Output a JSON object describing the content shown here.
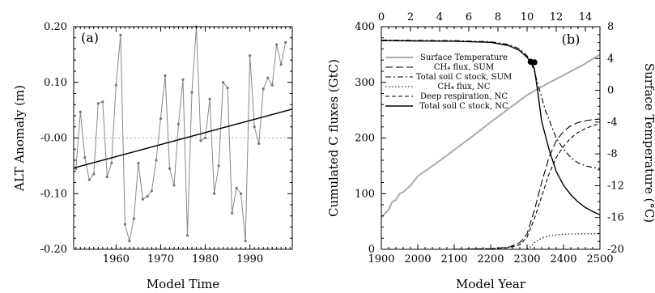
{
  "chart_data": [
    {
      "panel_label": "(a)",
      "type": "line",
      "xlabel": "Model Time",
      "ylabel": "ALT Anomaly (m)",
      "xlim": [
        1950.5,
        1999.5
      ],
      "ylim": [
        -0.2,
        0.2
      ],
      "x_ticks": [
        1960,
        1970,
        1980,
        1990
      ],
      "y_ticks": [
        0.2,
        0.1,
        0.0,
        -0.1,
        -0.2
      ],
      "y_tick_labels": [
        "0.20",
        "0.10",
        "-0.00",
        "-0.10",
        "-0.20"
      ],
      "zero_line": "dotted",
      "series": [
        {
          "style": "grey line with markers",
          "x": [
            1951,
            1952,
            1953,
            1954,
            1955,
            1956,
            1957,
            1958,
            1959,
            1960,
            1961,
            1962,
            1963,
            1964,
            1965,
            1966,
            1967,
            1968,
            1969,
            1970,
            1971,
            1972,
            1973,
            1974,
            1975,
            1976,
            1977,
            1978,
            1979,
            1980,
            1981,
            1982,
            1983,
            1984,
            1985,
            1986,
            1987,
            1988,
            1989,
            1990,
            1991,
            1992,
            1993,
            1994,
            1995,
            1996,
            1997,
            1998
          ],
          "y": [
            -0.055,
            0.047,
            -0.035,
            -0.075,
            -0.065,
            0.062,
            0.065,
            -0.07,
            -0.045,
            0.095,
            0.185,
            -0.155,
            -0.185,
            -0.145,
            -0.045,
            -0.11,
            -0.105,
            -0.095,
            -0.04,
            0.035,
            0.112,
            -0.055,
            -0.085,
            0.025,
            0.105,
            -0.175,
            0.082,
            0.2,
            -0.005,
            0.0,
            0.07,
            -0.1,
            -0.05,
            0.1,
            0.09,
            -0.135,
            -0.09,
            -0.1,
            -0.185,
            0.148,
            0.02,
            -0.01,
            0.088,
            0.108,
            0.095,
            0.168,
            0.132,
            0.172
          ]
        },
        {
          "style": "black linear trend",
          "x": [
            1950.5,
            1999.5
          ],
          "y": [
            -0.054,
            0.052
          ]
        }
      ]
    },
    {
      "panel_label": "(b)",
      "type": "line",
      "xlabel": "Model Year",
      "ylabel": "Cumulated C fluxes (GtC)",
      "y2label": "Surface Temperature (°C)",
      "xlim": [
        1900,
        2500
      ],
      "ylim": [
        0,
        400
      ],
      "y2lim": [
        -20,
        8
      ],
      "x2lim": [
        0,
        15
      ],
      "x_ticks": [
        1900,
        2000,
        2100,
        2200,
        2300,
        2400,
        2500
      ],
      "y_ticks": [
        0,
        100,
        200,
        300,
        400
      ],
      "x2_ticks": [
        0,
        2,
        4,
        6,
        8,
        10,
        12,
        14
      ],
      "y2_ticks": [
        8,
        4,
        0,
        -4,
        -8,
        -12,
        -16,
        -20
      ],
      "legend_position": "top-left",
      "legend": [
        {
          "label": "Surface Temperature",
          "style": "grey"
        },
        {
          "label": "CH₄ flux, SUM",
          "style": "long-dash"
        },
        {
          "label": "Total soil C stock, SUM",
          "style": "dash-dot"
        },
        {
          "label": "CH₄ flux, NC",
          "style": "dotted"
        },
        {
          "label": "Deep respiration, NC",
          "style": "dashed"
        },
        {
          "label": "Total soil C stock, NC",
          "style": "solid"
        }
      ],
      "series": [
        {
          "name": "Surface Temperature",
          "axis": "right",
          "x": [
            1900,
            1910,
            1920,
            1930,
            1940,
            1950,
            1960,
            1970,
            1980,
            1990,
            2000,
            2050,
            2100,
            2150,
            2200,
            2250,
            2300,
            2350,
            2400,
            2450,
            2500
          ],
          "y": [
            -16,
            -15.5,
            -15,
            -14,
            -13.8,
            -13,
            -12.8,
            -12.4,
            -12,
            -11.4,
            -10.8,
            -9.2,
            -7.5,
            -5.8,
            -4,
            -2.3,
            -0.6,
            0.7,
            1.9,
            3.1,
            4.5
          ]
        },
        {
          "name": "CH₄ flux, SUM",
          "x": [
            1900,
            2100,
            2200,
            2250,
            2280,
            2300,
            2320,
            2340,
            2360,
            2380,
            2400,
            2420,
            2440,
            2460,
            2480,
            2500
          ],
          "y": [
            0,
            0,
            1,
            4,
            12,
            28,
            70,
            120,
            165,
            195,
            212,
            222,
            228,
            231,
            233,
            234
          ]
        },
        {
          "name": "Total soil C stock, SUM",
          "x": [
            1900,
            2100,
            2200,
            2250,
            2280,
            2300,
            2310,
            2320,
            2330,
            2350,
            2380,
            2400,
            2420,
            2440,
            2460,
            2480,
            2500
          ],
          "y": [
            376,
            375,
            373,
            368,
            360,
            348,
            336,
            320,
            296,
            250,
            200,
            180,
            165,
            155,
            150,
            147,
            145
          ]
        },
        {
          "name": "CH₄ flux, NC",
          "x": [
            1900,
            2300,
            2310,
            2320,
            2340,
            2360,
            2380,
            2400,
            2450,
            2500
          ],
          "y": [
            0,
            0,
            5,
            12,
            20,
            24,
            26,
            27,
            28,
            28
          ]
        },
        {
          "name": "Deep respiration, NC",
          "x": [
            1900,
            2100,
            2200,
            2250,
            2280,
            2300,
            2320,
            2340,
            2360,
            2380,
            2400,
            2420,
            2440,
            2460,
            2480,
            2500
          ],
          "y": [
            0,
            0,
            1,
            3,
            8,
            22,
            55,
            95,
            135,
            165,
            185,
            200,
            210,
            217,
            222,
            226
          ]
        },
        {
          "name": "Total soil C stock, NC",
          "x": [
            1900,
            2100,
            2200,
            2250,
            2280,
            2300,
            2310,
            2320,
            2330,
            2340,
            2360,
            2380,
            2400,
            2420,
            2440,
            2460,
            2480,
            2500
          ],
          "y": [
            375,
            374,
            372,
            366,
            357,
            345,
            336,
            325,
            280,
            230,
            180,
            140,
            115,
            98,
            85,
            75,
            68,
            62
          ]
        }
      ],
      "markers": [
        {
          "x": 2310,
          "y": 337
        },
        {
          "x": 2320,
          "y": 336
        }
      ]
    }
  ]
}
